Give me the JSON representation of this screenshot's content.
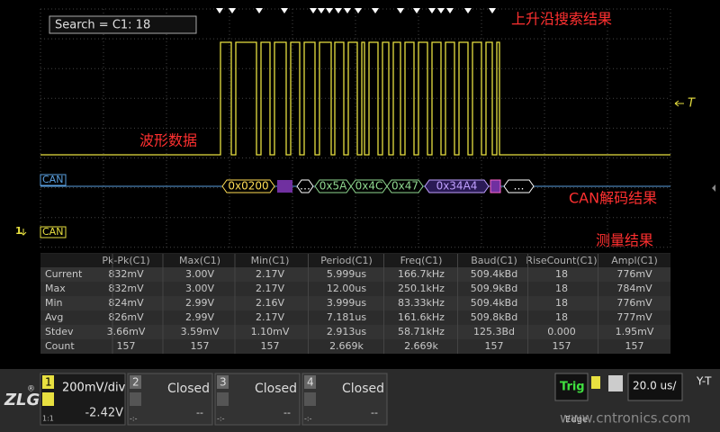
{
  "search": "Search = C1: 18",
  "annotations": {
    "rising_edge": "上升沿搜索结果",
    "waveform": "波形数据",
    "can_decode": "CAN解码结果",
    "measurement": "测量结果"
  },
  "markers": {
    "trigger": "T",
    "channel": "1",
    "can_label_top": "CAN",
    "can_label_bottom": "CAN"
  },
  "decode": [
    "0x0200",
    "…",
    "0x5A",
    "0x4C",
    "0x47",
    "0x34A4",
    "…"
  ],
  "table": {
    "header": [
      "Pk-Pk(C1)",
      "Max(C1)",
      "Min(C1)",
      "Period(C1)",
      "Freq(C1)",
      "Baud(C1)",
      "RiseCount(C1)",
      "Ampl(C1)"
    ],
    "rows": [
      [
        "Current",
        "832mV",
        "3.00V",
        "2.17V",
        "5.999us",
        "166.7kHz",
        "509.4kBd",
        "18",
        "776mV"
      ],
      [
        "Max",
        "832mV",
        "3.00V",
        "2.17V",
        "12.00us",
        "250.1kHz",
        "509.9kBd",
        "18",
        "784mV"
      ],
      [
        "Min",
        "824mV",
        "2.99V",
        "2.16V",
        "3.999us",
        "83.33kHz",
        "509.4kBd",
        "18",
        "776mV"
      ],
      [
        "Avg",
        "826mV",
        "2.99V",
        "2.17V",
        "7.181us",
        "161.6kHz",
        "509.8kBd",
        "18",
        "777mV"
      ],
      [
        "Stdev",
        "3.66mV",
        "3.59mV",
        "1.10mV",
        "2.913us",
        "58.71kHz",
        "125.3Bd",
        "0.000",
        "1.95mV"
      ],
      [
        "Count",
        "157",
        "157",
        "157",
        "2.669k",
        "2.669k",
        "157",
        "157",
        "157"
      ]
    ]
  },
  "channels": [
    {
      "number": "1",
      "scale": "200mV/div",
      "offset": "-2.42V",
      "probe": "1:1"
    },
    {
      "number": "2",
      "status": "Closed",
      "offset": "--",
      "probe": "-:-"
    },
    {
      "number": "3",
      "status": "Closed",
      "offset": "--",
      "probe": "-:-"
    },
    {
      "number": "4",
      "status": "Closed",
      "offset": "--",
      "probe": "-:-"
    }
  ],
  "trigger": {
    "label": "Trig",
    "mode": "Edge"
  },
  "timebase": {
    "scale": "20.0 us/",
    "mode": "Y-T"
  },
  "watermark": "www.cntronics.com"
}
